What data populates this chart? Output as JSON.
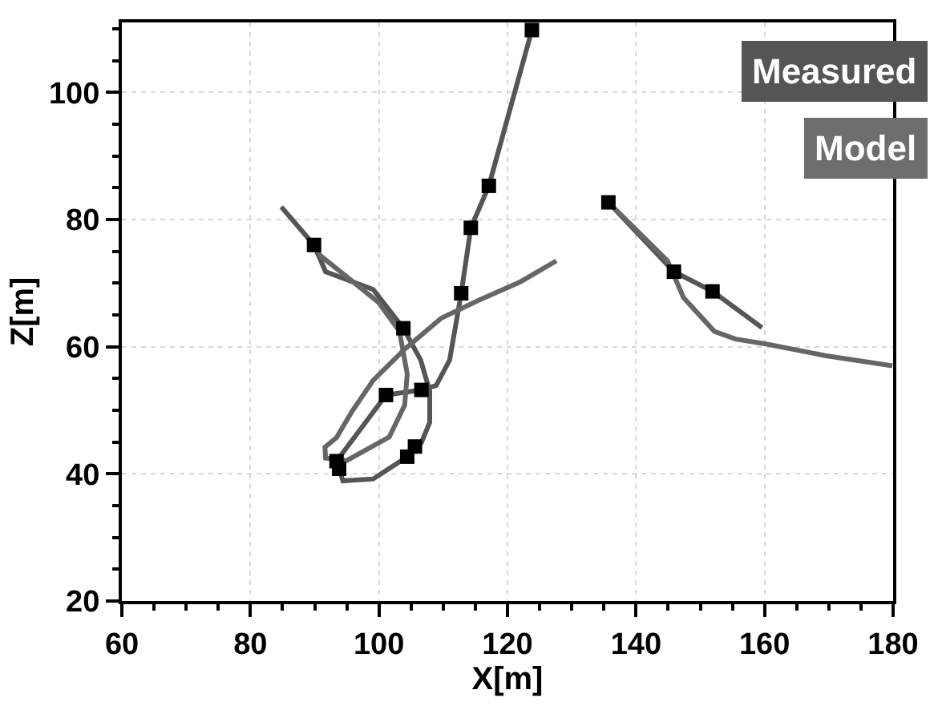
{
  "chart_data": {
    "type": "line",
    "xlabel": "X[m]",
    "ylabel": "Z[m]",
    "xlim": [
      60,
      180
    ],
    "xticks": [
      60,
      80,
      100,
      120,
      140,
      160,
      180
    ],
    "ylim": [
      20,
      111
    ],
    "yticks": [
      20,
      40,
      60,
      80,
      100
    ],
    "grid": true,
    "line_style": "solid",
    "annotations": [
      "Measured",
      "Model"
    ],
    "series": [
      {
        "marker": "none",
        "color": "#555555",
        "x": [
          84.8,
          89.9,
          91.7,
          99.1,
          103.8,
          106.5,
          107.9,
          107.9,
          106.6,
          105.6,
          104.4,
          99.1,
          94.4,
          93.8,
          93.4,
          101.1,
          106.6,
          108.9,
          111.0,
          112.8,
          114.3,
          117.1,
          123.8
        ],
        "values": [
          82.0,
          76.0,
          71.8,
          69.0,
          62.9,
          57.9,
          53.0,
          48.1,
          44.9,
          44.3,
          42.7,
          39.2,
          38.9,
          40.8,
          42.0,
          52.4,
          53.2,
          53.9,
          57.9,
          68.4,
          78.7,
          85.3,
          109.8
        ]
      },
      {
        "marker": "none",
        "color": "#666666",
        "x": [
          89.9,
          90.9,
          95.0,
          99.9,
          103.2,
          104.4,
          104.0,
          101.6,
          95.0,
          91.7,
          91.6,
          93.4,
          95.8,
          99.1,
          104.0,
          109.7,
          115.5,
          122.0,
          127.6
        ],
        "values": [
          76.0,
          74.3,
          71.0,
          67.0,
          62.4,
          55.7,
          50.8,
          45.8,
          42.1,
          42.5,
          44.2,
          45.7,
          49.8,
          54.7,
          59.6,
          64.5,
          67.3,
          70.2,
          73.5
        ]
      },
      {
        "marker": "none",
        "color": "#555555",
        "x": [
          135.7,
          145.9,
          151.9,
          159.6
        ],
        "values": [
          82.7,
          71.8,
          68.7,
          63.0
        ]
      },
      {
        "marker": "none",
        "color": "#666666",
        "x": [
          135.7,
          144.9,
          147.4,
          152.2,
          155.5,
          160.4,
          169.4,
          179.9
        ],
        "values": [
          82.7,
          73.5,
          67.7,
          62.4,
          61.2,
          60.4,
          58.6,
          57.0
        ]
      },
      {
        "type": "scatter",
        "marker": "square",
        "color": "#000000",
        "x": [
          89.9,
          103.8,
          105.6,
          104.4,
          93.8,
          93.4,
          101.1,
          106.6,
          112.8,
          114.3,
          117.1,
          123.8,
          135.7,
          145.9,
          151.9
        ],
        "values": [
          76.0,
          62.9,
          44.3,
          42.7,
          40.8,
          42.0,
          52.4,
          53.2,
          68.4,
          78.7,
          85.3,
          109.8,
          82.7,
          71.8,
          68.7
        ]
      }
    ]
  }
}
